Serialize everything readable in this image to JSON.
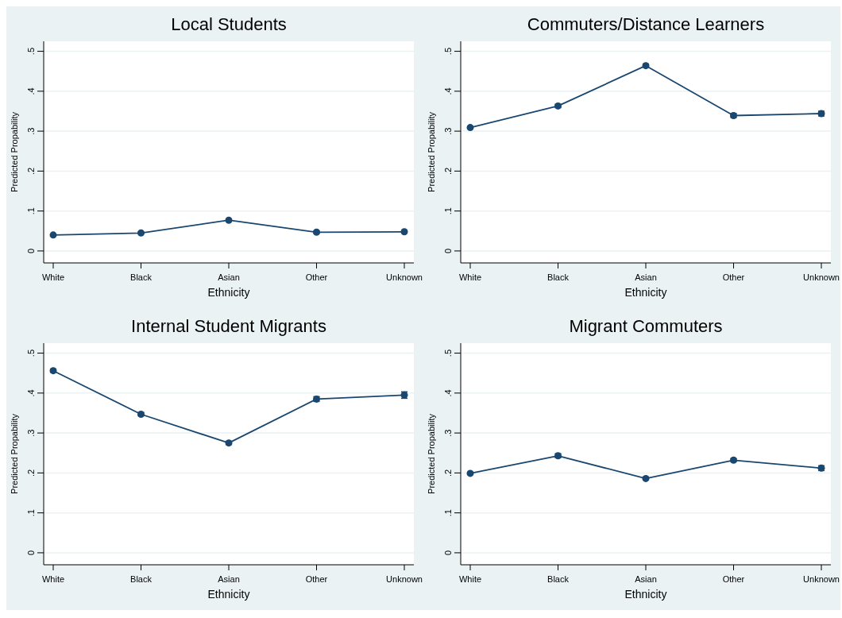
{
  "chart_data": [
    {
      "type": "line",
      "title": "Local Students",
      "xlabel": "Ethnicity",
      "ylabel": "Predicted Propability",
      "categories": [
        "White",
        "Black",
        "Asian",
        "Other",
        "Unknown"
      ],
      "ylim": [
        -0.03,
        0.525
      ],
      "yticks": [
        {
          "value": 0,
          "label": "0"
        },
        {
          "value": 0.1,
          "label": ".1"
        },
        {
          "value": 0.2,
          "label": ".2"
        },
        {
          "value": 0.3,
          "label": ".3"
        },
        {
          "value": 0.4,
          "label": ".4"
        },
        {
          "value": 0.5,
          "label": ".5"
        }
      ],
      "grid": "y",
      "marker": "circle",
      "series": [
        {
          "color": "#1a476f",
          "values": [
            0.04,
            0.045,
            0.077,
            0.047,
            0.048
          ],
          "errors": [
            0.002,
            0.002,
            0.003,
            0.003,
            0.003
          ]
        }
      ]
    },
    {
      "type": "line",
      "title": "Commuters/Distance Learners",
      "xlabel": "Ethnicity",
      "ylabel": "Predicted Propability",
      "categories": [
        "White",
        "Black",
        "Asian",
        "Other",
        "Unknown"
      ],
      "ylim": [
        -0.03,
        0.525
      ],
      "yticks": [
        {
          "value": 0,
          "label": "0"
        },
        {
          "value": 0.1,
          "label": ".1"
        },
        {
          "value": 0.2,
          "label": ".2"
        },
        {
          "value": 0.3,
          "label": ".3"
        },
        {
          "value": 0.4,
          "label": ".4"
        },
        {
          "value": 0.5,
          "label": ".5"
        }
      ],
      "grid": "y",
      "marker": "circle",
      "series": [
        {
          "color": "#1a476f",
          "values": [
            0.309,
            0.363,
            0.464,
            0.339,
            0.344
          ],
          "errors": [
            0.003,
            0.004,
            0.004,
            0.005,
            0.006
          ]
        }
      ]
    },
    {
      "type": "line",
      "title": "Internal Student Migrants",
      "xlabel": "Ethnicity",
      "ylabel": "Predicted Propability",
      "categories": [
        "White",
        "Black",
        "Asian",
        "Other",
        "Unknown"
      ],
      "ylim": [
        -0.03,
        0.525
      ],
      "yticks": [
        {
          "value": 0,
          "label": "0"
        },
        {
          "value": 0.1,
          "label": ".1"
        },
        {
          "value": 0.2,
          "label": ".2"
        },
        {
          "value": 0.3,
          "label": ".3"
        },
        {
          "value": 0.4,
          "label": ".4"
        },
        {
          "value": 0.5,
          "label": ".5"
        }
      ],
      "grid": "y",
      "marker": "circle",
      "series": [
        {
          "color": "#1a476f",
          "values": [
            0.456,
            0.347,
            0.275,
            0.385,
            0.395
          ],
          "errors": [
            0.004,
            0.004,
            0.004,
            0.006,
            0.008
          ]
        }
      ]
    },
    {
      "type": "line",
      "title": "Migrant Commuters",
      "xlabel": "Ethnicity",
      "ylabel": "Predicted Propability",
      "categories": [
        "White",
        "Black",
        "Asian",
        "Other",
        "Unknown"
      ],
      "ylim": [
        -0.03,
        0.525
      ],
      "yticks": [
        {
          "value": 0,
          "label": "0"
        },
        {
          "value": 0.1,
          "label": ".1"
        },
        {
          "value": 0.2,
          "label": ".2"
        },
        {
          "value": 0.3,
          "label": ".3"
        },
        {
          "value": 0.4,
          "label": ".4"
        },
        {
          "value": 0.5,
          "label": ".5"
        }
      ],
      "grid": "y",
      "marker": "circle",
      "series": [
        {
          "color": "#1a476f",
          "values": [
            0.199,
            0.243,
            0.186,
            0.232,
            0.212
          ],
          "errors": [
            0.003,
            0.005,
            0.003,
            0.004,
            0.006
          ]
        }
      ]
    }
  ]
}
